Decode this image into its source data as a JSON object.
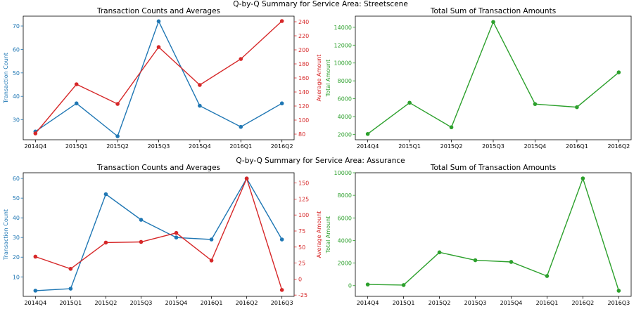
{
  "figure": {
    "suptitles": [
      "Q-by-Q Summary for Service Area: Streetscene",
      "Q-by-Q Summary for Service Area: Assurance"
    ]
  },
  "colors": {
    "count": "#1f77b4",
    "average": "#d62728",
    "total": "#2ca02c",
    "axis": "#000000"
  },
  "chart_data": [
    {
      "type": "line",
      "title": "Transaction Counts and Averages",
      "categories": [
        "2014Q4",
        "2015Q1",
        "2015Q2",
        "2015Q3",
        "2015Q4",
        "2016Q1",
        "2016Q2"
      ],
      "series": [
        {
          "name": "Transaction Count",
          "axis": "left",
          "values": [
            25,
            37,
            23,
            72,
            36,
            27,
            37
          ]
        },
        {
          "name": "Average Amount",
          "axis": "right",
          "values": [
            81,
            151,
            123,
            204,
            150,
            187,
            241
          ]
        }
      ],
      "ylabel": "Transaction Count",
      "ylabel_right": "Average Amount",
      "ylim": [
        21.5,
        74.2
      ],
      "ylim_right": [
        72,
        248
      ],
      "yticks": [
        30,
        40,
        50,
        60,
        70
      ],
      "yticks_right": [
        80,
        100,
        120,
        140,
        160,
        180,
        200,
        220,
        240
      ],
      "grid": false
    },
    {
      "type": "line",
      "title": "Total Sum of Transaction Amounts",
      "categories": [
        "2014Q4",
        "2015Q1",
        "2015Q2",
        "2015Q3",
        "2015Q4",
        "2016Q1",
        "2016Q2"
      ],
      "series": [
        {
          "name": "Total Amount",
          "values": [
            2050,
            5550,
            2800,
            14600,
            5400,
            5050,
            8950
          ]
        }
      ],
      "ylabel": "Total Amount",
      "ylim": [
        1400,
        15250
      ],
      "yticks": [
        2000,
        4000,
        6000,
        8000,
        10000,
        12000,
        14000
      ],
      "grid": false
    },
    {
      "type": "line",
      "title": "Transaction Counts and Averages",
      "categories": [
        "2014Q4",
        "2015Q1",
        "2015Q2",
        "2015Q3",
        "2015Q4",
        "2016Q1",
        "2016Q2",
        "2016Q3"
      ],
      "series": [
        {
          "name": "Transaction Count",
          "axis": "left",
          "values": [
            3,
            4,
            52,
            39,
            30,
            29,
            60,
            29
          ]
        },
        {
          "name": "Average Amount",
          "axis": "right",
          "values": [
            35,
            16,
            57,
            58,
            72,
            29,
            157,
            -17
          ]
        }
      ],
      "ylabel": "Transaction Count",
      "ylabel_right": "Average Amount",
      "ylim": [
        0.1,
        62.9
      ],
      "ylim_right": [
        -27,
        166
      ],
      "yticks": [
        10,
        20,
        30,
        40,
        50,
        60
      ],
      "yticks_right": [
        -25,
        0,
        25,
        50,
        75,
        100,
        125,
        150
      ],
      "grid": false
    },
    {
      "type": "line",
      "title": "Total Sum of Transaction Amounts",
      "categories": [
        "2014Q4",
        "2015Q1",
        "2015Q2",
        "2015Q3",
        "2015Q4",
        "2016Q1",
        "2016Q2",
        "2016Q3"
      ],
      "series": [
        {
          "name": "Total Amount",
          "values": [
            100,
            50,
            2950,
            2250,
            2100,
            850,
            9500,
            -450
          ]
        }
      ],
      "ylabel": "Total Amount",
      "ylim": [
        -950,
        10000
      ],
      "yticks": [
        0,
        2000,
        4000,
        6000,
        8000,
        10000
      ],
      "grid": false
    }
  ]
}
